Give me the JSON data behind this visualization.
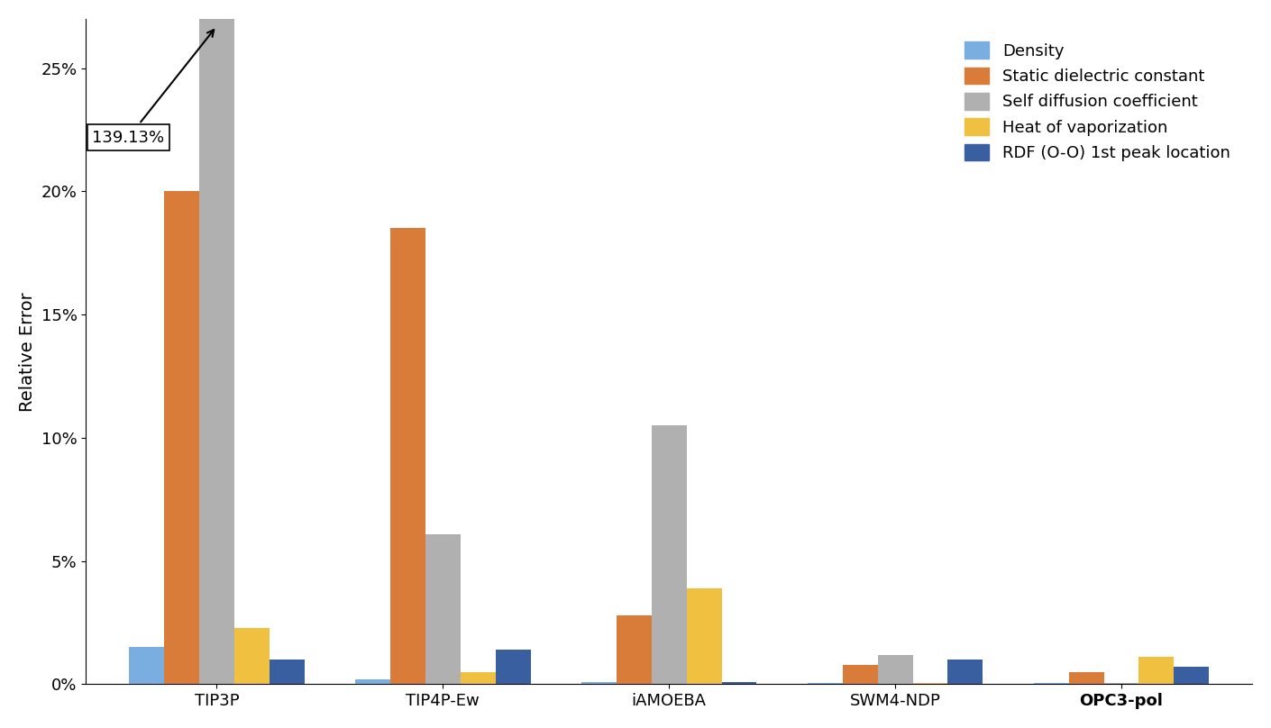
{
  "categories": [
    "TIP3P",
    "TIP4P-Ew",
    "iAMOEBA",
    "SWM4-NDP",
    "OPC3-pol"
  ],
  "series": {
    "Density": [
      1.5,
      0.2,
      0.1,
      0.05,
      0.05
    ],
    "Static dielectric constant": [
      20.0,
      18.5,
      2.8,
      0.8,
      0.5
    ],
    "Self diffusion coefficient": [
      27.0,
      6.1,
      10.5,
      1.2,
      0.05
    ],
    "Heat of vaporization": [
      2.3,
      0.5,
      3.9,
      0.05,
      1.1
    ],
    "RDF (O-O) 1st peak location": [
      1.0,
      1.4,
      0.1,
      1.0,
      0.7
    ]
  },
  "colors": {
    "Density": "#7aade0",
    "Static dielectric constant": "#d97c3a",
    "Self diffusion coefficient": "#b0b0b0",
    "Heat of vaporization": "#f0c040",
    "RDF (O-O) 1st peak location": "#3a5fa0"
  },
  "ylabel": "Relative Error",
  "ylim_max": 27.0,
  "ytick_vals": [
    0,
    5,
    10,
    15,
    20,
    25
  ],
  "yticklabels": [
    "0%",
    "5%",
    "10%",
    "15%",
    "20%",
    "25%"
  ],
  "annotation_text": "139.13%",
  "background_color": "#ffffff",
  "legend_fontsize": 13,
  "axis_fontsize": 14,
  "tick_fontsize": 13,
  "bar_width": 0.155
}
